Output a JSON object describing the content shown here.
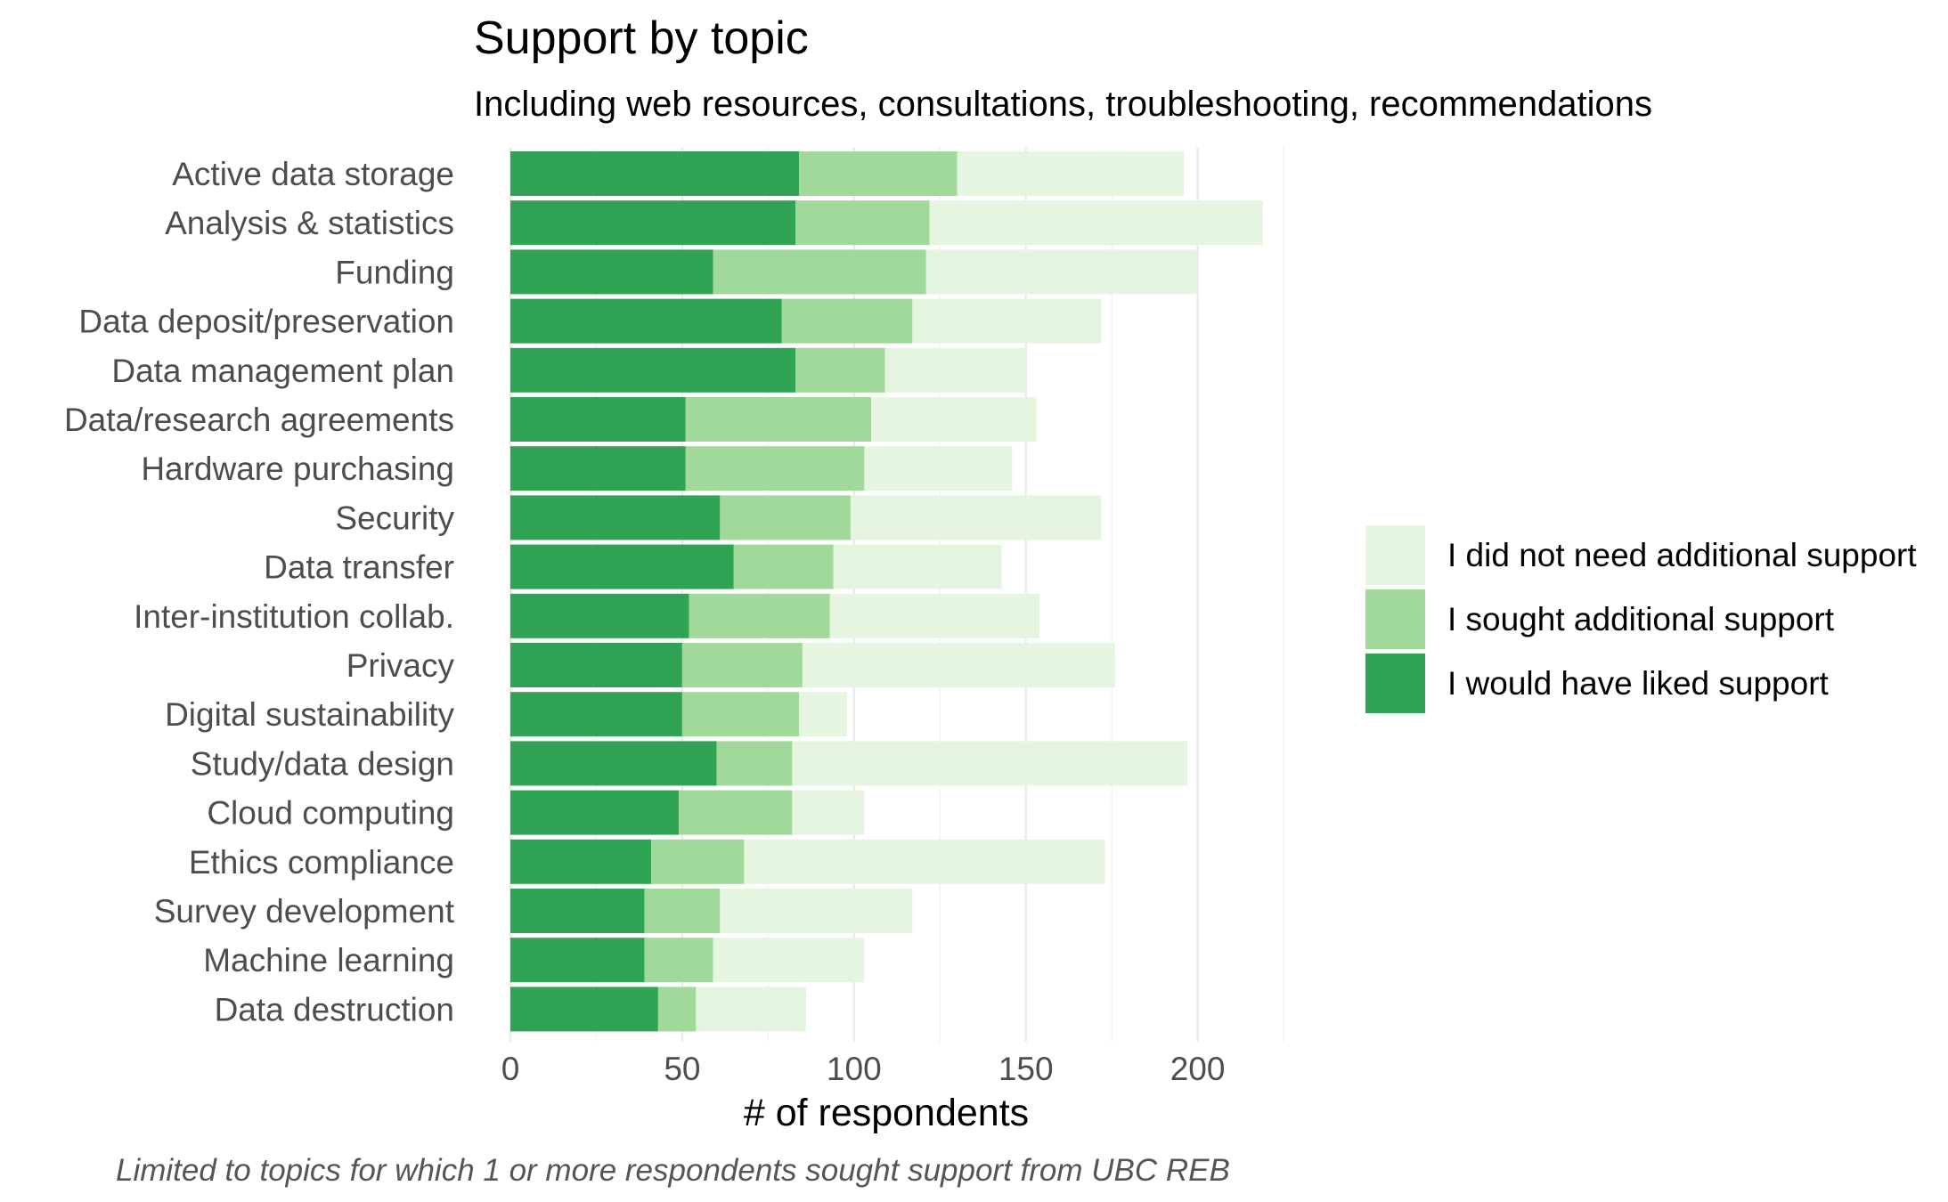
{
  "chart_data": {
    "type": "bar",
    "orientation": "horizontal",
    "stacked": true,
    "title": "Support by topic",
    "subtitle": "Including web resources, consultations, troubleshooting, recommendations",
    "xlabel": "# of respondents",
    "ylabel": "",
    "caption": "Limited to topics for which 1 or more respondents sought support from UBC REB",
    "xlim": [
      0,
      225
    ],
    "xticks": [
      "0",
      "50",
      "100",
      "150",
      "200"
    ],
    "xtick_values": [
      0,
      50,
      100,
      150,
      200
    ],
    "grid": true,
    "legend_position": "right",
    "categories": [
      "Active data storage",
      "Analysis & statistics",
      "Funding",
      "Data deposit/preservation",
      "Data management plan",
      "Data/research agreements",
      "Hardware purchasing",
      "Security",
      "Data transfer",
      "Inter-institution collab.",
      "Privacy",
      "Digital sustainability",
      "Study/data design",
      "Cloud computing",
      "Ethics compliance",
      "Survey development",
      "Machine learning",
      "Data destruction"
    ],
    "series": [
      {
        "name": "I would have liked support",
        "color": "#31a354",
        "values": [
          84,
          83,
          59,
          79,
          83,
          51,
          51,
          61,
          65,
          52,
          50,
          50,
          60,
          49,
          41,
          39,
          39,
          43
        ]
      },
      {
        "name": "I sought additional support",
        "color": "#a1d99b",
        "values": [
          46,
          39,
          62,
          38,
          26,
          54,
          52,
          38,
          29,
          41,
          35,
          34,
          22,
          33,
          27,
          22,
          20,
          11
        ]
      },
      {
        "name": "I did not need additional support",
        "color": "#e5f5e0",
        "values": [
          66,
          97,
          79,
          55,
          41,
          48,
          43,
          73,
          49,
          61,
          91,
          14,
          115,
          21,
          105,
          56,
          44,
          32
        ]
      }
    ],
    "legend_order": [
      "I did not need additional support",
      "I sought additional support",
      "I would have liked support"
    ]
  }
}
